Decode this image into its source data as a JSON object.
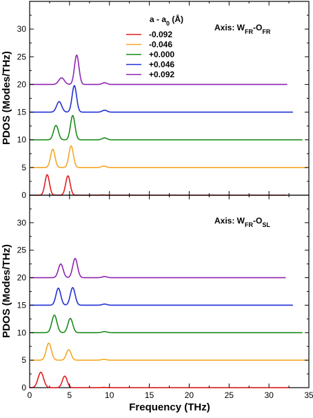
{
  "chart_data": [
    {
      "type": "line",
      "panel": "top",
      "annotation": {
        "prefix": "Axis: W",
        "sub1": "FR",
        "mid": "-O",
        "sub2": "FR"
      },
      "ylabel": "PDOS (Modes/THz)",
      "xlabel": "",
      "xlim": [
        0,
        35
      ],
      "ylim": [
        0,
        35
      ],
      "xticks": [
        0,
        5,
        10,
        15,
        20,
        25,
        30,
        35
      ],
      "yticks": [
        0,
        5,
        10,
        15,
        20,
        25,
        30
      ],
      "show_x_tick_labels": false,
      "legend": {
        "title_main": "a - a",
        "title_sub": "0",
        "title_unit": " (Å)",
        "position": "top-center",
        "entries": [
          "-0.092",
          "-0.046",
          "+0.000",
          "+0.046",
          "+0.092"
        ]
      },
      "series": [
        {
          "name": "-0.092",
          "color": "#e41a1c",
          "offset": 0,
          "end": 32.2,
          "peaks": [
            {
              "x": 2.2,
              "h": 3.7,
              "w": 0.28
            },
            {
              "x": 4.8,
              "h": 3.5,
              "w": 0.28
            },
            {
              "x": 9.2,
              "h": 0.05,
              "w": 0.3
            }
          ]
        },
        {
          "name": "-0.046",
          "color": "#f5a623",
          "offset": 5,
          "end": 34.8,
          "peaks": [
            {
              "x": 2.9,
              "h": 3.3,
              "w": 0.28
            },
            {
              "x": 5.2,
              "h": 3.9,
              "w": 0.28
            },
            {
              "x": 9.3,
              "h": 0.25,
              "w": 0.3
            }
          ]
        },
        {
          "name": "+0.000",
          "color": "#1a8a1a",
          "offset": 10,
          "end": 34.2,
          "peaks": [
            {
              "x": 3.3,
              "h": 2.6,
              "w": 0.3
            },
            {
              "x": 5.4,
              "h": 4.4,
              "w": 0.28
            },
            {
              "x": 9.4,
              "h": 0.35,
              "w": 0.3
            }
          ]
        },
        {
          "name": "+0.046",
          "color": "#1f2fd6",
          "offset": 15,
          "end": 33.0,
          "peaks": [
            {
              "x": 3.7,
              "h": 1.9,
              "w": 0.32
            },
            {
              "x": 5.6,
              "h": 4.8,
              "w": 0.28
            },
            {
              "x": 9.4,
              "h": 0.35,
              "w": 0.3
            }
          ]
        },
        {
          "name": "+0.092",
          "color": "#8e24b0",
          "offset": 20,
          "end": 32.3,
          "peaks": [
            {
              "x": 4.0,
              "h": 1.2,
              "w": 0.35
            },
            {
              "x": 5.9,
              "h": 5.3,
              "w": 0.28
            },
            {
              "x": 9.4,
              "h": 0.3,
              "w": 0.3
            }
          ]
        }
      ]
    },
    {
      "type": "line",
      "panel": "bottom",
      "annotation": {
        "prefix": "Axis: W",
        "sub1": "FR",
        "mid": "-O",
        "sub2": "SL"
      },
      "ylabel": "PDOS (Modes/THz)",
      "xlabel": "Frequency (THz)",
      "xlim": [
        0,
        35
      ],
      "ylim": [
        0,
        35
      ],
      "xticks": [
        0,
        5,
        10,
        15,
        20,
        25,
        30,
        35
      ],
      "yticks": [
        0,
        5,
        10,
        15,
        20,
        25,
        30
      ],
      "show_x_tick_labels": true,
      "series": [
        {
          "name": "-0.092",
          "color": "#e41a1c",
          "offset": 0,
          "end": 32.5,
          "peaks": [
            {
              "x": 1.4,
              "h": 2.8,
              "w": 0.35
            },
            {
              "x": 4.4,
              "h": 2.1,
              "w": 0.3
            },
            {
              "x": 9.3,
              "h": 0.05,
              "w": 0.3
            }
          ]
        },
        {
          "name": "-0.046",
          "color": "#f5a623",
          "offset": 5,
          "end": 34.8,
          "peaks": [
            {
              "x": 2.4,
              "h": 3.1,
              "w": 0.32
            },
            {
              "x": 4.9,
              "h": 1.9,
              "w": 0.3
            },
            {
              "x": 9.3,
              "h": 0.15,
              "w": 0.3
            }
          ]
        },
        {
          "name": "+0.000",
          "color": "#1a8a1a",
          "offset": 10,
          "end": 34.2,
          "peaks": [
            {
              "x": 3.1,
              "h": 3.2,
              "w": 0.32
            },
            {
              "x": 5.1,
              "h": 2.6,
              "w": 0.3
            },
            {
              "x": 9.4,
              "h": 0.2,
              "w": 0.3
            }
          ]
        },
        {
          "name": "+0.046",
          "color": "#1f2fd6",
          "offset": 15,
          "end": 33.0,
          "peaks": [
            {
              "x": 3.6,
              "h": 3.1,
              "w": 0.3
            },
            {
              "x": 5.4,
              "h": 3.2,
              "w": 0.3
            },
            {
              "x": 9.4,
              "h": 0.2,
              "w": 0.3
            }
          ]
        },
        {
          "name": "+0.092",
          "color": "#8e24b0",
          "offset": 20,
          "end": 32.1,
          "peaks": [
            {
              "x": 3.9,
              "h": 2.5,
              "w": 0.3
            },
            {
              "x": 5.7,
              "h": 3.5,
              "w": 0.3
            },
            {
              "x": 9.4,
              "h": 0.2,
              "w": 0.3
            }
          ]
        }
      ]
    }
  ]
}
